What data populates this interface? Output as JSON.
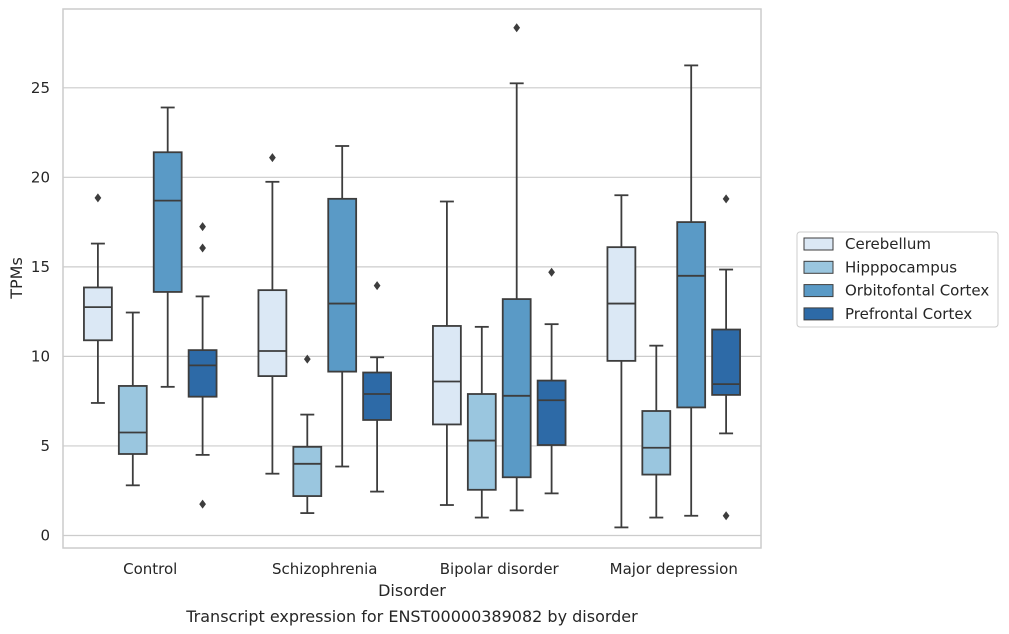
{
  "chart_data": {
    "type": "box",
    "caption": "Transcript expression for ENST00000389082 by disorder",
    "xlabel": "Disorder",
    "ylabel": "TPMs",
    "ylim": [
      -0.7,
      29.4
    ],
    "yticks": [
      0,
      5,
      10,
      15,
      20,
      25
    ],
    "grid": "horizontal",
    "legend_position": "right",
    "categories": [
      "Control",
      "Schizophrenia",
      "Bipolar disorder",
      "Major depression"
    ],
    "series": [
      {
        "name": "Cerebellum",
        "color": "#dbe8f5",
        "boxes": [
          {
            "whislo": 7.4,
            "q1": 10.9,
            "med": 12.75,
            "q3": 13.85,
            "whishi": 16.3,
            "fliers": [
              18.85
            ]
          },
          {
            "whislo": 3.45,
            "q1": 8.9,
            "med": 10.3,
            "q3": 13.7,
            "whishi": 19.75,
            "fliers": [
              21.1
            ]
          },
          {
            "whislo": 1.7,
            "q1": 6.2,
            "med": 8.6,
            "q3": 11.7,
            "whishi": 18.65,
            "fliers": []
          },
          {
            "whislo": 0.45,
            "q1": 9.75,
            "med": 12.95,
            "q3": 16.1,
            "whishi": 19.0,
            "fliers": []
          }
        ]
      },
      {
        "name": "Hipppocampus",
        "color": "#9ac6df",
        "boxes": [
          {
            "whislo": 2.8,
            "q1": 4.55,
            "med": 5.75,
            "q3": 8.35,
            "whishi": 12.45,
            "fliers": []
          },
          {
            "whislo": 1.25,
            "q1": 2.2,
            "med": 4.0,
            "q3": 4.95,
            "whishi": 6.75,
            "fliers": [
              9.85
            ]
          },
          {
            "whislo": 1.0,
            "q1": 2.55,
            "med": 5.3,
            "q3": 7.9,
            "whishi": 11.65,
            "fliers": []
          },
          {
            "whislo": 1.0,
            "q1": 3.4,
            "med": 4.9,
            "q3": 6.95,
            "whishi": 10.6,
            "fliers": []
          }
        ]
      },
      {
        "name": "Orbitofontal Cortex",
        "color": "#5a9ac6",
        "boxes": [
          {
            "whislo": 8.3,
            "q1": 13.6,
            "med": 18.7,
            "q3": 21.4,
            "whishi": 23.9,
            "fliers": []
          },
          {
            "whislo": 3.85,
            "q1": 9.15,
            "med": 12.95,
            "q3": 18.8,
            "whishi": 21.75,
            "fliers": []
          },
          {
            "whislo": 1.4,
            "q1": 3.25,
            "med": 7.8,
            "q3": 13.2,
            "whishi": 25.25,
            "fliers": [
              28.35
            ]
          },
          {
            "whislo": 1.1,
            "q1": 7.15,
            "med": 14.5,
            "q3": 17.5,
            "whishi": 26.25,
            "fliers": []
          }
        ]
      },
      {
        "name": "Prefrontal Cortex",
        "color": "#2d6aa7",
        "boxes": [
          {
            "whislo": 4.5,
            "q1": 7.75,
            "med": 9.5,
            "q3": 10.35,
            "whishi": 13.35,
            "fliers": [
              1.75,
              16.05,
              17.25
            ]
          },
          {
            "whislo": 2.45,
            "q1": 6.45,
            "med": 7.9,
            "q3": 9.1,
            "whishi": 9.95,
            "fliers": [
              13.95
            ]
          },
          {
            "whislo": 2.35,
            "q1": 5.05,
            "med": 7.55,
            "q3": 8.65,
            "whishi": 11.8,
            "fliers": [
              14.7
            ]
          },
          {
            "whislo": 5.7,
            "q1": 7.85,
            "med": 8.45,
            "q3": 11.5,
            "whishi": 14.85,
            "fliers": [
              1.1,
              18.8
            ]
          }
        ]
      }
    ]
  }
}
